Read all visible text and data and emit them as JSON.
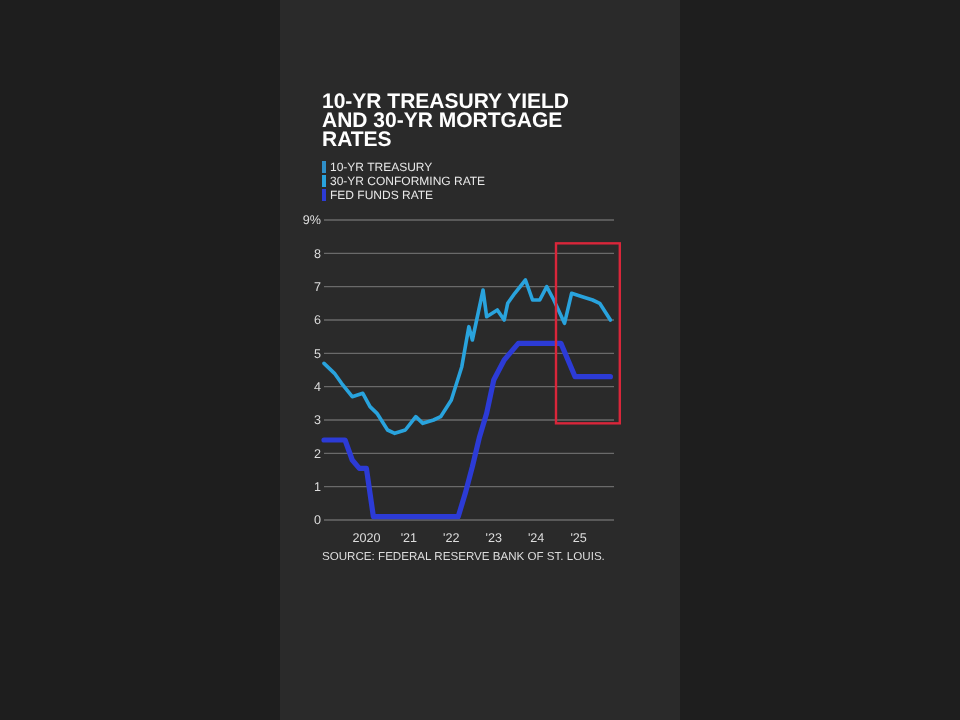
{
  "chart_data": {
    "type": "line",
    "title": "10-YR TREASURY YIELD AND 30-YR MORTGAGE RATES",
    "annotations": [
      "SOURCE: FEDERAL RESERVE BANK OF ST. LOUIS."
    ],
    "xlim": [
      "2019-01",
      "2025-11"
    ],
    "xticks": [
      {
        "value": "2020",
        "label": "2020"
      },
      {
        "value": "2021",
        "label": "'21"
      },
      {
        "value": "2022",
        "label": "'22"
      },
      {
        "value": "2023",
        "label": "'23"
      },
      {
        "value": "2024",
        "label": "'24"
      },
      {
        "value": "2025",
        "label": "'25"
      }
    ],
    "ylim": [
      0,
      9
    ],
    "yticks": [
      0,
      1,
      2,
      3,
      4,
      5,
      6,
      7,
      8,
      {
        "value": 9,
        "label": "9%"
      }
    ],
    "grid": "y",
    "legend": "top left",
    "marker": "none",
    "line_style": "solid",
    "series": [
      {
        "name": "10-YR TREASURY",
        "color": "#2f8fc8"
      },
      {
        "name": "30-YR CONFORMING RATE",
        "color": "#29a3dd",
        "x": [
          "2019-01",
          "2019-04",
          "2019-06",
          "2019-09",
          "2019-12",
          "2020-02",
          "2020-04",
          "2020-07",
          "2020-09",
          "2020-12",
          "2021-03",
          "2021-05",
          "2021-08",
          "2021-10",
          "2022-01",
          "2022-04",
          "2022-06",
          "2022-07",
          "2022-10",
          "2022-11",
          "2023-02",
          "2023-04",
          "2023-05",
          "2023-07",
          "2023-10",
          "2023-12",
          "2024-02",
          "2024-04",
          "2024-06",
          "2024-09",
          "2024-11",
          "2025-02",
          "2025-05",
          "2025-07",
          "2025-10"
        ],
        "values": [
          4.7,
          4.4,
          4.1,
          3.7,
          3.8,
          3.4,
          3.2,
          2.7,
          2.6,
          2.7,
          3.1,
          2.9,
          3.0,
          3.1,
          3.6,
          4.6,
          5.8,
          5.4,
          6.9,
          6.1,
          6.3,
          6.0,
          6.5,
          6.8,
          7.2,
          6.6,
          6.6,
          7.0,
          6.6,
          5.9,
          6.8,
          6.7,
          6.6,
          6.5,
          6.0
        ]
      },
      {
        "name": "FED FUNDS RATE",
        "color": "#2c3bd6",
        "x": [
          "2019-01",
          "2019-07",
          "2019-09",
          "2019-11",
          "2020-01",
          "2020-03",
          "2022-03",
          "2022-05",
          "2022-07",
          "2022-09",
          "2022-11",
          "2023-01",
          "2023-04",
          "2023-08",
          "2024-08",
          "2024-10",
          "2024-12",
          "2025-10"
        ],
        "values": [
          2.4,
          2.4,
          1.8,
          1.55,
          1.55,
          0.1,
          0.1,
          0.8,
          1.6,
          2.5,
          3.2,
          4.2,
          4.8,
          5.3,
          5.3,
          4.8,
          4.3,
          4.3
        ]
      }
    ]
  }
}
